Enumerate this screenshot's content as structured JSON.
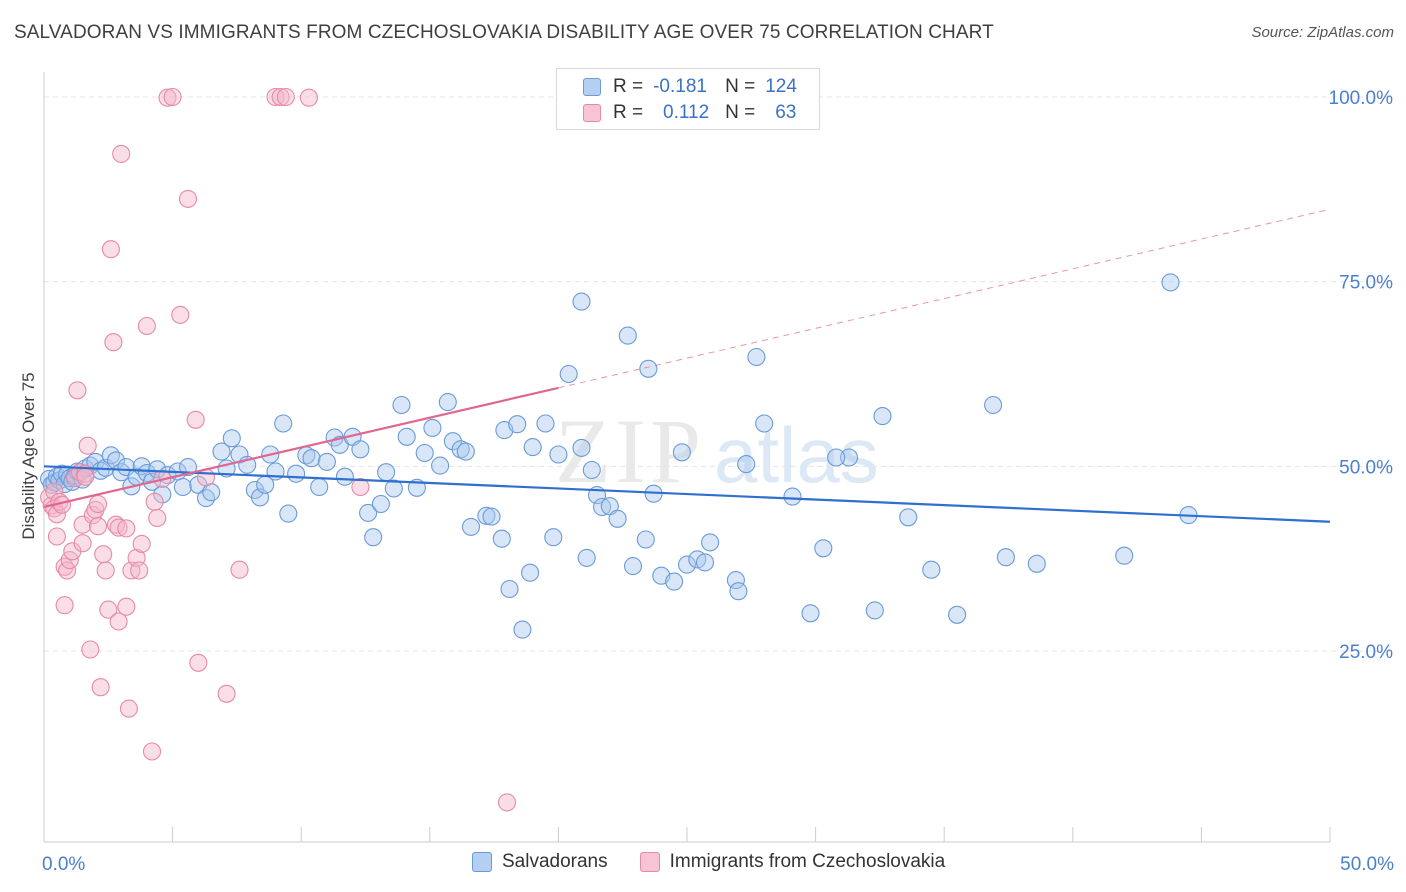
{
  "header": {
    "title": "SALVADORAN VS IMMIGRANTS FROM CZECHOSLOVAKIA DISABILITY AGE OVER 75 CORRELATION CHART",
    "source": "Source: ZipAtlas.com"
  },
  "watermark": {
    "zip": "ZIP",
    "atlas": "atlas"
  },
  "legend": {
    "rows": [
      {
        "r_label": "R =",
        "r_value": "-0.181",
        "n_label": "N =",
        "n_value": "124"
      },
      {
        "r_label": "R =",
        "r_value": "0.112",
        "n_label": "N =",
        "n_value": "63"
      }
    ]
  },
  "bottom_legend": {
    "items": [
      {
        "label": "Salvadorans"
      },
      {
        "label": "Immigrants from Czechoslovakia"
      }
    ]
  },
  "colors": {
    "blue_fill": "#a9c8f0",
    "blue_stroke": "#6a9bd8",
    "blue_line": "#2f6fce",
    "pink_fill": "#f5b6c9",
    "pink_stroke": "#e58aa8",
    "pink_line": "#e06690",
    "tick_text": "#4a7fcf",
    "grid": "#e4e4e4"
  },
  "chart_data": {
    "type": "scatter",
    "title": "SALVADORAN VS IMMIGRANTS FROM CZECHOSLOVAKIA DISABILITY AGE OVER 75 CORRELATION CHART",
    "xlabel": "",
    "ylabel": "Disability Age Over 75",
    "xlim": [
      0,
      50
    ],
    "ylim": [
      0,
      102
    ],
    "x_tick_labels": [
      {
        "value": 0,
        "label": "0.0%"
      },
      {
        "value": 50,
        "label": "50.0%"
      }
    ],
    "x_minor_ticks": [
      0,
      5,
      10,
      15,
      20,
      25,
      30,
      35,
      40,
      45,
      50
    ],
    "y_ticks": [
      {
        "value": 25,
        "label": "25.0%"
      },
      {
        "value": 50,
        "label": "50.0%"
      },
      {
        "value": 75,
        "label": "75.0%"
      },
      {
        "value": 100,
        "label": "100.0%"
      }
    ],
    "grid": true,
    "legend_position": "top-center",
    "series": [
      {
        "name": "Salvadorans",
        "color": "blue",
        "r": -0.181,
        "n": 124,
        "trend": {
          "x": [
            0,
            50
          ],
          "y": [
            50.0,
            42.5
          ],
          "dashed_from": null
        },
        "points": [
          [
            0.2,
            48.3
          ],
          [
            0.3,
            47.5
          ],
          [
            0.4,
            47.8
          ],
          [
            0.5,
            48.6
          ],
          [
            0.6,
            48.1
          ],
          [
            0.7,
            49.0
          ],
          [
            0.8,
            47.6
          ],
          [
            0.9,
            48.9
          ],
          [
            1.0,
            48.4
          ],
          [
            1.1,
            47.9
          ],
          [
            1.2,
            48.7
          ],
          [
            1.3,
            49.3
          ],
          [
            1.5,
            48.2
          ],
          [
            1.6,
            49.7
          ],
          [
            1.8,
            50.1
          ],
          [
            2.0,
            50.6
          ],
          [
            2.2,
            49.4
          ],
          [
            2.4,
            49.8
          ],
          [
            2.6,
            51.5
          ],
          [
            2.8,
            50.8
          ],
          [
            3.0,
            49.2
          ],
          [
            3.2,
            49.9
          ],
          [
            3.4,
            47.3
          ],
          [
            3.6,
            48.6
          ],
          [
            3.8,
            50.0
          ],
          [
            4.0,
            49.1
          ],
          [
            4.2,
            47.9
          ],
          [
            4.4,
            49.6
          ],
          [
            4.6,
            46.2
          ],
          [
            4.8,
            48.8
          ],
          [
            5.2,
            49.3
          ],
          [
            5.4,
            47.2
          ],
          [
            5.6,
            49.9
          ],
          [
            6.0,
            47.5
          ],
          [
            6.3,
            45.7
          ],
          [
            6.5,
            46.5
          ],
          [
            6.9,
            52.0
          ],
          [
            7.1,
            49.7
          ],
          [
            7.3,
            53.8
          ],
          [
            7.6,
            51.6
          ],
          [
            7.9,
            50.2
          ],
          [
            8.2,
            46.8
          ],
          [
            8.4,
            45.8
          ],
          [
            8.6,
            47.5
          ],
          [
            8.8,
            51.6
          ],
          [
            9.0,
            49.3
          ],
          [
            9.3,
            55.8
          ],
          [
            9.5,
            43.6
          ],
          [
            9.8,
            49.0
          ],
          [
            10.2,
            51.5
          ],
          [
            10.4,
            51.1
          ],
          [
            10.7,
            47.2
          ],
          [
            11.0,
            50.6
          ],
          [
            11.3,
            53.9
          ],
          [
            11.5,
            52.9
          ],
          [
            11.7,
            48.6
          ],
          [
            12.0,
            54.0
          ],
          [
            12.3,
            52.3
          ],
          [
            12.6,
            43.7
          ],
          [
            12.8,
            40.4
          ],
          [
            13.1,
            44.9
          ],
          [
            13.3,
            49.2
          ],
          [
            13.6,
            47.0
          ],
          [
            13.9,
            58.3
          ],
          [
            14.1,
            54.0
          ],
          [
            14.5,
            47.1
          ],
          [
            14.8,
            51.8
          ],
          [
            15.1,
            55.2
          ],
          [
            15.4,
            50.1
          ],
          [
            15.7,
            58.7
          ],
          [
            15.9,
            53.4
          ],
          [
            16.2,
            52.3
          ],
          [
            16.4,
            52.0
          ],
          [
            16.6,
            41.8
          ],
          [
            17.2,
            43.3
          ],
          [
            17.4,
            43.2
          ],
          [
            17.8,
            40.2
          ],
          [
            17.9,
            54.9
          ],
          [
            18.1,
            33.4
          ],
          [
            18.4,
            55.7
          ],
          [
            18.6,
            27.9
          ],
          [
            18.9,
            35.6
          ],
          [
            19.0,
            52.6
          ],
          [
            19.5,
            55.8
          ],
          [
            19.8,
            40.4
          ],
          [
            20.0,
            51.6
          ],
          [
            20.4,
            62.5
          ],
          [
            20.9,
            72.3
          ],
          [
            20.9,
            52.5
          ],
          [
            21.1,
            37.6
          ],
          [
            21.3,
            49.5
          ],
          [
            21.5,
            46.1
          ],
          [
            21.7,
            44.5
          ],
          [
            22.0,
            44.6
          ],
          [
            22.3,
            42.9
          ],
          [
            22.7,
            67.7
          ],
          [
            22.9,
            36.5
          ],
          [
            23.4,
            40.1
          ],
          [
            23.5,
            63.2
          ],
          [
            23.7,
            46.3
          ],
          [
            24.0,
            35.2
          ],
          [
            24.5,
            34.4
          ],
          [
            24.8,
            51.9
          ],
          [
            25.0,
            36.7
          ],
          [
            25.4,
            37.4
          ],
          [
            25.7,
            37.0
          ],
          [
            25.9,
            39.7
          ],
          [
            26.9,
            34.6
          ],
          [
            27.0,
            33.1
          ],
          [
            27.3,
            50.3
          ],
          [
            27.7,
            64.8
          ],
          [
            28.0,
            55.8
          ],
          [
            29.1,
            45.9
          ],
          [
            29.8,
            30.1
          ],
          [
            30.3,
            38.9
          ],
          [
            31.3,
            51.2
          ],
          [
            32.3,
            30.5
          ],
          [
            32.6,
            56.8
          ],
          [
            33.6,
            43.1
          ],
          [
            34.5,
            36.0
          ],
          [
            35.5,
            29.9
          ],
          [
            36.9,
            58.3
          ],
          [
            37.4,
            37.7
          ],
          [
            38.6,
            36.8
          ],
          [
            42.0,
            37.9
          ],
          [
            43.8,
            74.9
          ],
          [
            44.5,
            43.4
          ],
          [
            30.8,
            51.2
          ]
        ]
      },
      {
        "name": "Immigrants from Czechoslovakia",
        "color": "pink",
        "r": 0.112,
        "n": 63,
        "trend": {
          "x": [
            0,
            50
          ],
          "y": [
            44.5,
            84.8
          ],
          "dashed_from": 20.0
        },
        "points": [
          [
            0.2,
            45.8
          ],
          [
            0.3,
            44.7
          ],
          [
            0.4,
            44.3
          ],
          [
            0.4,
            46.6
          ],
          [
            0.5,
            43.5
          ],
          [
            0.5,
            40.5
          ],
          [
            0.6,
            45.2
          ],
          [
            0.7,
            44.8
          ],
          [
            0.8,
            36.4
          ],
          [
            0.8,
            31.2
          ],
          [
            0.9,
            35.9
          ],
          [
            1.0,
            37.3
          ],
          [
            1.1,
            38.5
          ],
          [
            1.2,
            48.4
          ],
          [
            1.3,
            60.3
          ],
          [
            1.4,
            49.2
          ],
          [
            1.5,
            42.1
          ],
          [
            1.5,
            39.6
          ],
          [
            1.6,
            49.0
          ],
          [
            1.6,
            48.6
          ],
          [
            1.7,
            52.8
          ],
          [
            1.8,
            25.2
          ],
          [
            1.9,
            43.4
          ],
          [
            2.0,
            44.1
          ],
          [
            2.1,
            44.9
          ],
          [
            2.2,
            20.1
          ],
          [
            2.3,
            38.1
          ],
          [
            2.4,
            35.9
          ],
          [
            2.5,
            30.6
          ],
          [
            2.6,
            79.4
          ],
          [
            2.7,
            66.8
          ],
          [
            2.8,
            42.1
          ],
          [
            2.9,
            41.7
          ],
          [
            2.9,
            29.0
          ],
          [
            3.0,
            92.3
          ],
          [
            3.2,
            41.6
          ],
          [
            3.2,
            31.0
          ],
          [
            3.3,
            17.2
          ],
          [
            3.4,
            35.9
          ],
          [
            3.6,
            37.6
          ],
          [
            3.7,
            35.9
          ],
          [
            4.0,
            69.0
          ],
          [
            4.2,
            11.4
          ],
          [
            4.3,
            45.2
          ],
          [
            4.4,
            43.0
          ],
          [
            4.6,
            48.3
          ],
          [
            4.8,
            99.9
          ],
          [
            5.0,
            100.0
          ],
          [
            5.3,
            70.5
          ],
          [
            5.6,
            86.2
          ],
          [
            5.9,
            56.3
          ],
          [
            6.0,
            23.4
          ],
          [
            6.3,
            48.5
          ],
          [
            7.1,
            19.2
          ],
          [
            7.6,
            36.0
          ],
          [
            9.0,
            100.0
          ],
          [
            9.2,
            100.0
          ],
          [
            9.4,
            100.0
          ],
          [
            10.3,
            99.9
          ],
          [
            12.3,
            47.2
          ],
          [
            18.0,
            4.5
          ],
          [
            3.8,
            39.5
          ],
          [
            2.1,
            41.9
          ]
        ]
      }
    ]
  }
}
